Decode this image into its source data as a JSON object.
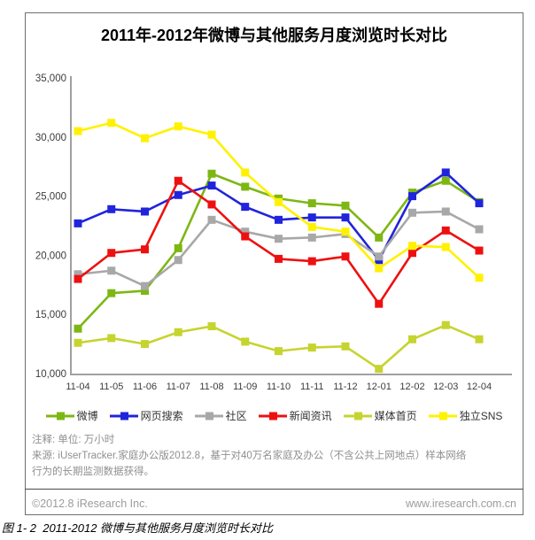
{
  "title": "2011年-2012年微博与其他服务月度浏览时长对比",
  "chart_data": {
    "type": "line",
    "title": "2011年-2012年微博与其他服务月度浏览时长对比",
    "unit": "万小时",
    "categories": [
      "11-04",
      "11-05",
      "11-06",
      "11-07",
      "11-08",
      "11-09",
      "11-10",
      "11-11",
      "11-12",
      "12-01",
      "12-02",
      "12-03",
      "12-04"
    ],
    "ylim": [
      10000,
      35000
    ],
    "ytick_values": [
      35000,
      30000,
      25000,
      20000,
      15000,
      10000
    ],
    "ytick_labels": [
      "35,000",
      "30,000",
      "25,000",
      "20,000",
      "15,000",
      "10,000"
    ],
    "grid": false,
    "legend_position": "bottom",
    "series": [
      {
        "name": "微博",
        "color": "#7DB713",
        "values": [
          13800,
          16800,
          17000,
          20600,
          26900,
          25800,
          24800,
          24400,
          24200,
          21500,
          25300,
          26300,
          24500
        ]
      },
      {
        "name": "网页搜索",
        "color": "#2024DC",
        "values": [
          22700,
          23900,
          23700,
          25100,
          25900,
          24100,
          23000,
          23200,
          23200,
          19600,
          25000,
          27000,
          24400
        ]
      },
      {
        "name": "社区",
        "color": "#A8A8A8",
        "values": [
          18400,
          18700,
          17400,
          19600,
          23000,
          22000,
          21400,
          21500,
          21800,
          19900,
          23600,
          23700,
          22200
        ]
      },
      {
        "name": "新闻资讯",
        "color": "#EE1010",
        "values": [
          18000,
          20200,
          20500,
          26300,
          24300,
          21600,
          19700,
          19500,
          19900,
          15900,
          20200,
          22100,
          20400
        ]
      },
      {
        "name": "媒体首页",
        "color": "#C6D42F",
        "values": [
          12600,
          13000,
          12500,
          13500,
          14000,
          12700,
          11900,
          12200,
          12300,
          10400,
          12900,
          14100,
          12900
        ]
      },
      {
        "name": "独立SNS",
        "color": "#FFF100",
        "values": [
          30500,
          31200,
          29900,
          30900,
          30200,
          27000,
          24500,
          22400,
          22000,
          18900,
          20800,
          20700,
          18100
        ]
      }
    ]
  },
  "notes": "注释: 单位: 万小时\n来源: iUserTracker.家庭办公版2012.8，基于对40万名家庭及办公（不含公共上网地点）样本网络\n行为的长期监测数据获得。",
  "footer": {
    "copyright": "©2012.8 iResearch Inc.",
    "website": "www.iresearch.com.cn"
  },
  "caption": "图 1- 2  2011-2012 微博与其他服务月度浏览时长对比"
}
